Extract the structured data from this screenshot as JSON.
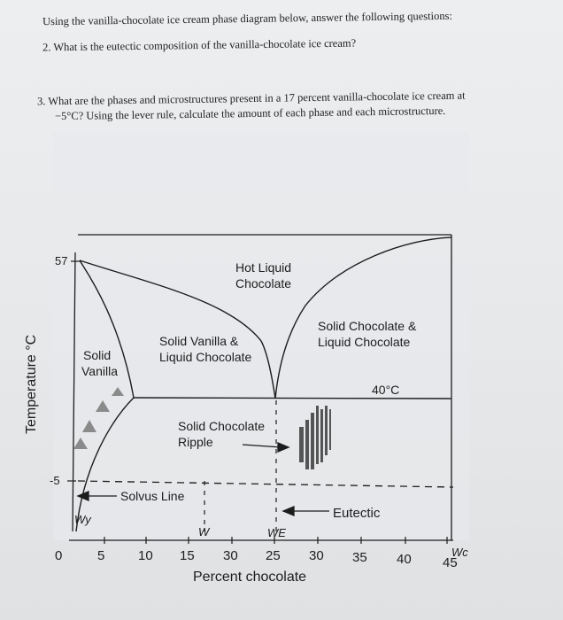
{
  "questions": {
    "intro": "Using the vanilla-chocolate ice cream phase diagram below, answer the following questions:",
    "q2": "2.   What is the eutectic composition of the vanilla-chocolate ice cream?",
    "q3_line1": "3.   What are the phases and microstructures present in a 17 percent vanilla-chocolate ice cream at",
    "q3_line2": "−5°C? Using the lever rule, calculate the amount of each phase and each microstructure."
  },
  "diagram": {
    "y_axis_label": "Temperature °C",
    "x_axis_label": "Percent chocolate",
    "y_ticks": [
      "57",
      "-5"
    ],
    "x_ticks": [
      "0",
      "5",
      "10",
      "15",
      "30",
      "25",
      "30",
      "35",
      "40",
      "45"
    ],
    "regions": {
      "hot_liquid": [
        "Hot Liquid",
        "Chocolate"
      ],
      "solid_vanilla": [
        "Solid",
        "Vanilla"
      ],
      "solid_vanilla_liquid": [
        "Solid Vanilla &",
        "Liquid Chocolate"
      ],
      "solid_choc_liquid": [
        "Solid Chocolate &",
        "Liquid Chocolate"
      ],
      "ripple": [
        "Solid Chocolate",
        "Ripple"
      ]
    },
    "annotations": {
      "eutectic_temp": "40°C",
      "solvus_line": "Solvus Line",
      "eutectic": "Eutectic",
      "wy": "Wy",
      "w": "W",
      "we": "WE",
      "wc": "Wc"
    },
    "colors": {
      "line": "#1c1c1c",
      "ripple_bars": "#555555",
      "triangles": "#8a8a8a"
    }
  }
}
